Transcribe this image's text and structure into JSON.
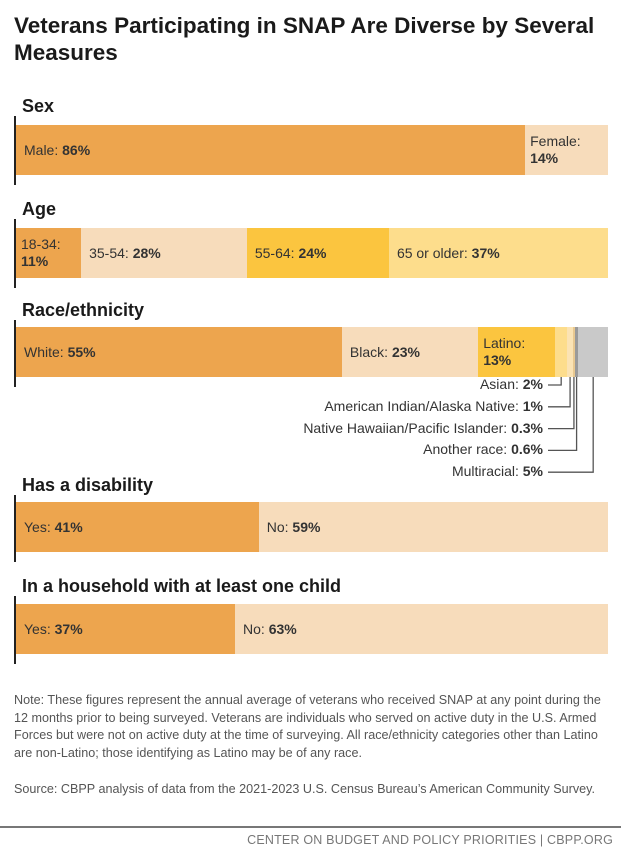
{
  "chart_data": {
    "type": "bar",
    "stacked": true,
    "orientation": "horizontal",
    "title": "Veterans Participating in SNAP Are Diverse by Several Measures",
    "xlim": [
      0,
      100
    ],
    "unit": "%",
    "colors": {
      "orange": "#EDA54E",
      "peach": "#F7DCBB",
      "yellow": "#FBC53F",
      "light_yellow": "#FDDD8C",
      "gray": "#C9C9C9",
      "dark_gray": "#9A9A9A"
    },
    "panels": [
      {
        "title": "Sex",
        "segments": [
          {
            "label": "Male:",
            "value": 86,
            "value_label": "86%",
            "color": "#EDA54E"
          },
          {
            "label": "Female:",
            "value": 14,
            "value_label": "14%",
            "color": "#F7DCBB"
          }
        ]
      },
      {
        "title": "Age",
        "segments": [
          {
            "label": "18-34:",
            "value": 11,
            "value_label": "11%",
            "color": "#EDA54E"
          },
          {
            "label": "35-54:",
            "value": 28,
            "value_label": "28%",
            "color": "#F7DCBB"
          },
          {
            "label": "55-64:",
            "value": 24,
            "value_label": "24%",
            "color": "#FBC53F"
          },
          {
            "label": "65 or older:",
            "value": 37,
            "value_label": "37%",
            "color": "#FDDD8C"
          }
        ]
      },
      {
        "title": "Race/ethnicity",
        "segments": [
          {
            "label": "White:",
            "value": 55,
            "value_label": "55%",
            "color": "#EDA54E"
          },
          {
            "label": "Black:",
            "value": 23,
            "value_label": "23%",
            "color": "#F7DCBB"
          },
          {
            "label": "Latino:",
            "value": 13,
            "value_label": "13%",
            "color": "#FBC53F"
          },
          {
            "label": "Asian:",
            "value": 2,
            "value_label": "2%",
            "color": "#FDDD8C",
            "callout": true
          },
          {
            "label": "American Indian/Alaska Native:",
            "value": 1,
            "value_label": "1%",
            "color": "#FBE3B4",
            "callout": true
          },
          {
            "label": "Native Hawaiian/Pacific Islander:",
            "value": 0.3,
            "value_label": "0.3%",
            "color": "#E8C890",
            "callout": true
          },
          {
            "label": "Another race:",
            "value": 0.6,
            "value_label": "0.6%",
            "color": "#9A9A9A",
            "callout": true
          },
          {
            "label": "Multiracial:",
            "value": 5,
            "value_label": "5%",
            "color": "#C9C9C9",
            "callout": true
          }
        ]
      },
      {
        "title": "Has a disability",
        "segments": [
          {
            "label": "Yes:",
            "value": 41,
            "value_label": "41%",
            "color": "#EDA54E"
          },
          {
            "label": "No:",
            "value": 59,
            "value_label": "59%",
            "color": "#F7DCBB"
          }
        ]
      },
      {
        "title": "In a household with at least one child",
        "segments": [
          {
            "label": "Yes:",
            "value": 37,
            "value_label": "37%",
            "color": "#EDA54E"
          },
          {
            "label": "No:",
            "value": 63,
            "value_label": "63%",
            "color": "#F7DCBB"
          }
        ]
      }
    ]
  },
  "note": "Note: These figures represent the annual average of veterans who received SNAP at any point during the 12 months prior to being surveyed. Veterans are individuals who served on active duty in the U.S. Armed Forces but were not on active duty at the time of surveying. All race/ethnicity categories other than Latino are non-Latino; those identifying as Latino may be of any race.",
  "source": "Source: CBPP analysis of data from the 2021-2023 U.S. Census Bureau’s American Community Survey.",
  "footer": "CENTER ON BUDGET AND POLICY PRIORITIES | CBPP.ORG"
}
